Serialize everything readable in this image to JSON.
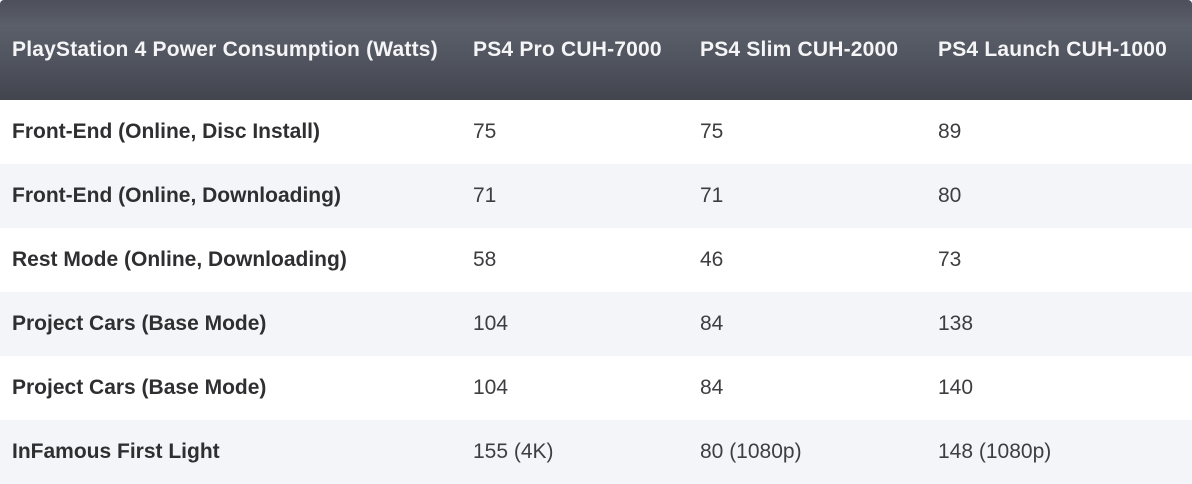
{
  "table": {
    "title": "PlayStation 4 Power Consumption (Watts)",
    "header": {
      "metric_column": "PlayStation 4 Power Consumption (Watts)",
      "col_pro": "PS4 Pro CUH-7000",
      "col_slim": "PS4 Slim CUH-2000",
      "col_launch": "PS4 Launch CUH-1000"
    },
    "rows": [
      {
        "label": "Front-End (Online, Disc Install)",
        "pro": "75",
        "slim": "75",
        "launch": "89"
      },
      {
        "label": "Front-End (Online, Downloading)",
        "pro": "71",
        "slim": "71",
        "launch": "80"
      },
      {
        "label": "Rest Mode (Online, Downloading)",
        "pro": "58",
        "slim": "46",
        "launch": "73"
      },
      {
        "label": "Project Cars (Base Mode)",
        "pro": "104",
        "slim": "84",
        "launch": "138"
      },
      {
        "label": "Project Cars (Base Mode)",
        "pro": "104",
        "slim": "84",
        "launch": "140"
      },
      {
        "label": "InFamous First Light",
        "pro": "155 (4K)",
        "slim": "80 (1080p)",
        "launch": "148 (1080p)"
      }
    ],
    "colors": {
      "header_bg_top": "#5b5f69",
      "header_bg_bottom": "#42454e",
      "header_text": "#f5f5f7",
      "row_alt_bg": "#f4f5f9",
      "row_bg": "#ffffff",
      "label_text": "#2f2f31",
      "value_text": "#3e3e41"
    }
  },
  "chart_data": {
    "type": "table",
    "title": "PlayStation 4 Power Consumption (Watts)",
    "categories": [
      "Front-End (Online, Disc Install)",
      "Front-End (Online, Downloading)",
      "Rest Mode (Online, Downloading)",
      "Project Cars (Base Mode)",
      "Project Cars (Base Mode)",
      "InFamous First Light"
    ],
    "series": [
      {
        "name": "PS4 Pro CUH-7000",
        "values": [
          "75",
          "71",
          "58",
          "104",
          "104",
          "155 (4K)"
        ]
      },
      {
        "name": "PS4 Slim CUH-2000",
        "values": [
          "75",
          "71",
          "46",
          "84",
          "84",
          "80 (1080p)"
        ]
      },
      {
        "name": "PS4 Launch CUH-1000",
        "values": [
          "89",
          "80",
          "73",
          "138",
          "140",
          "148 (1080p)"
        ]
      }
    ]
  }
}
